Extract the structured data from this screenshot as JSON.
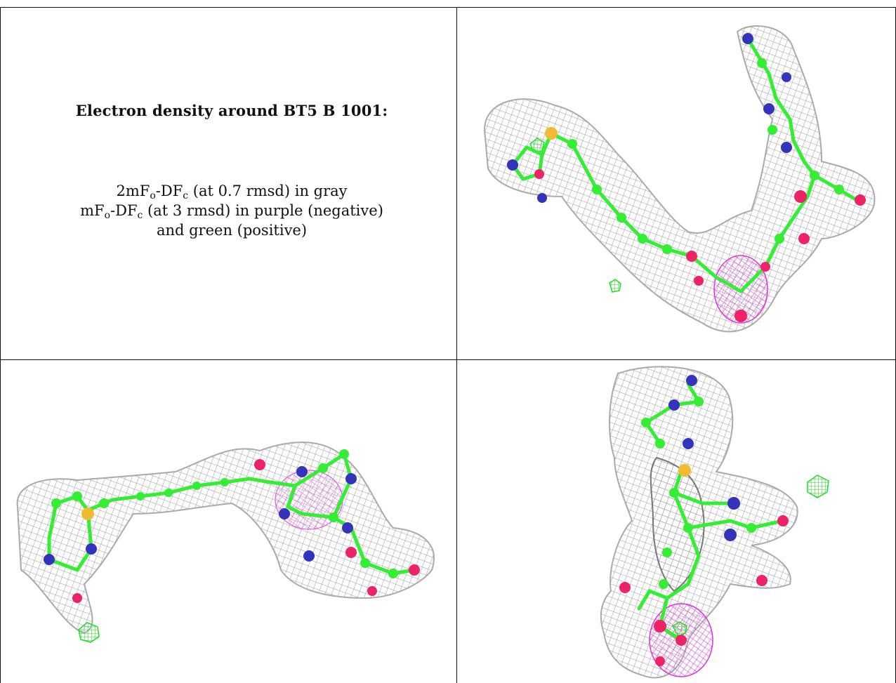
{
  "caption": {
    "title": "Electron density around BT5 B 1001:",
    "line1": {
      "a": "2mF",
      "a_sub": "o",
      "b": "-DF",
      "b_sub": "c",
      "c": " (at 0.7 rmsd) in gray"
    },
    "line2": {
      "a": "mF",
      "a_sub": "o",
      "b": "-DF",
      "b_sub": "c",
      "c": " (at 3 rmsd) in purple (negative)"
    },
    "line3": "and green (positive)"
  },
  "colors": {
    "mesh": "#9a9a9a",
    "carbon": "#33ee33",
    "nitrogen": "#3333bb",
    "oxygen": "#ee2266",
    "sulfur": "#eebb33",
    "negative_density": "#dd33dd",
    "positive_density": "#22dd22"
  },
  "panels": [
    {
      "name": "view-top-right",
      "icon": "molecule-density-render"
    },
    {
      "name": "view-bottom-left",
      "icon": "molecule-density-render"
    },
    {
      "name": "view-bottom-right",
      "icon": "molecule-density-render"
    }
  ]
}
